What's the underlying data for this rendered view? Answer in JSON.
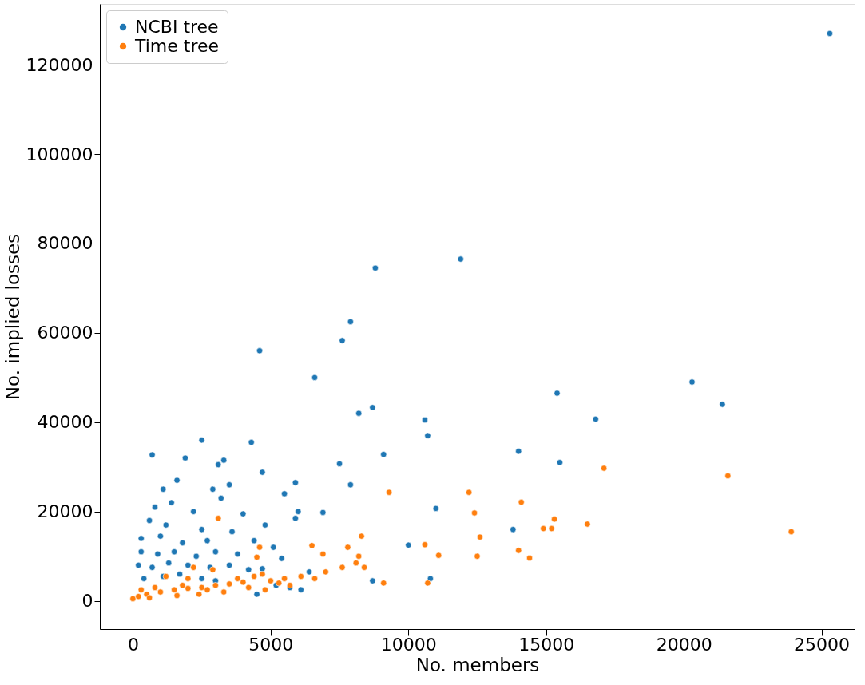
{
  "chart_data": {
    "type": "scatter",
    "xlabel": "No. members",
    "ylabel": "No. implied losses",
    "xlim": [
      -1200,
      26200
    ],
    "ylim": [
      -6300,
      133600
    ],
    "xticks": [
      0,
      5000,
      10000,
      15000,
      20000,
      25000
    ],
    "yticks": [
      0,
      20000,
      40000,
      60000,
      80000,
      100000,
      120000
    ],
    "grid": false,
    "legend": "top left",
    "marker": "circle",
    "series": [
      {
        "name": "NCBI tree",
        "color": "#1f77b4",
        "x": [
          25300,
          11900,
          8800,
          7900,
          7600,
          4600,
          6600,
          8700,
          8200,
          10600,
          10700,
          9100,
          7500,
          7900,
          11000,
          10000,
          10800,
          8700,
          14000,
          15400,
          15500,
          16800,
          20300,
          21400,
          13800,
          700,
          2500,
          1900,
          3300,
          4300,
          3100,
          1600,
          3500,
          4700,
          2900,
          1100,
          5900,
          5500,
          6000,
          6900,
          5900,
          800,
          1400,
          2200,
          3200,
          4000,
          4800,
          600,
          1200,
          2500,
          3600,
          300,
          1000,
          1800,
          2700,
          4400,
          5100,
          300,
          900,
          1500,
          2300,
          3000,
          3800,
          5400,
          6400,
          200,
          700,
          1300,
          2000,
          2800,
          3500,
          4200,
          4700,
          5200,
          400,
          1100,
          1700,
          2500,
          4500,
          5700,
          6100,
          3000
        ],
        "values": [
          127000,
          76500,
          74500,
          62500,
          58300,
          56000,
          50000,
          43300,
          42000,
          40500,
          37000,
          32800,
          30700,
          26000,
          20700,
          12500,
          5000,
          4500,
          33500,
          46500,
          31000,
          40700,
          49000,
          44000,
          16000,
          32700,
          36000,
          32000,
          31500,
          35500,
          30500,
          27000,
          26000,
          28800,
          25000,
          25000,
          26500,
          24000,
          20000,
          19800,
          18500,
          21000,
          22000,
          20000,
          23000,
          19500,
          17000,
          18000,
          17000,
          16000,
          15500,
          14000,
          14500,
          13000,
          13500,
          13500,
          12000,
          11000,
          10500,
          11000,
          10000,
          11000,
          10500,
          9500,
          6500,
          8000,
          7500,
          8500,
          8000,
          7500,
          8000,
          7000,
          7200,
          3500,
          5000,
          5500,
          6000,
          5000,
          1500,
          3000,
          2500,
          4500
        ]
      },
      {
        "name": "Time tree",
        "color": "#ff7f0e",
        "x": [
          23900,
          21600,
          17100,
          16500,
          15300,
          15200,
          14900,
          14400,
          14100,
          14000,
          12600,
          12400,
          12200,
          12500,
          11100,
          10600,
          10700,
          9300,
          9100,
          8300,
          8200,
          7800,
          8400,
          8100,
          7600,
          6500,
          6900,
          7000,
          6600,
          6100,
          5700,
          4600,
          4500,
          4700,
          3100,
          2900,
          2200,
          2000,
          1200,
          5000,
          4000,
          3500,
          3000,
          2500,
          2000,
          1500,
          1000,
          500,
          0,
          200,
          800,
          300,
          1600,
          2400,
          3300,
          4200,
          4800,
          5300,
          600,
          1800,
          2700,
          3800,
          4400,
          5500
        ],
        "values": [
          15500,
          28000,
          29700,
          17200,
          18300,
          16200,
          16200,
          9600,
          22100,
          11300,
          14300,
          19700,
          24300,
          10000,
          10200,
          12600,
          4000,
          24300,
          4000,
          14500,
          10000,
          12000,
          7500,
          8500,
          7500,
          12400,
          10500,
          6500,
          5000,
          5500,
          3500,
          12000,
          9800,
          6000,
          18500,
          7000,
          7500,
          5000,
          5500,
          4500,
          4200,
          3800,
          3500,
          3000,
          2800,
          2500,
          2000,
          1500,
          500,
          1000,
          3000,
          2500,
          1200,
          1500,
          2000,
          3000,
          2500,
          4000,
          700,
          3500,
          2500,
          5000,
          5500,
          5000
        ]
      }
    ]
  }
}
